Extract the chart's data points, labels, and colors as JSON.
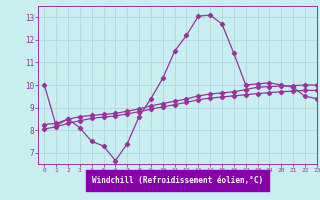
{
  "xlabel": "Windchill (Refroidissement éolien,°C)",
  "background_color": "#c8eef0",
  "grid_color": "#b0d8dc",
  "line_color": "#993399",
  "xlabel_bg": "#8800aa",
  "xlim": [
    -0.5,
    23
  ],
  "ylim": [
    6.5,
    13.5
  ],
  "x_ticks": [
    0,
    1,
    2,
    3,
    4,
    5,
    6,
    7,
    8,
    9,
    10,
    11,
    12,
    13,
    14,
    15,
    16,
    17,
    18,
    19,
    20,
    21,
    22,
    23
  ],
  "y_ticks": [
    7,
    8,
    9,
    10,
    11,
    12,
    13
  ],
  "series1_x": [
    0,
    1,
    2,
    3,
    4,
    5,
    6,
    7,
    8,
    9,
    10,
    11,
    12,
    13,
    14,
    15,
    16,
    17,
    18,
    19,
    20,
    21,
    22,
    23
  ],
  "series1_y": [
    10.0,
    8.2,
    8.5,
    8.1,
    7.5,
    7.3,
    6.65,
    7.4,
    8.6,
    9.4,
    10.3,
    11.5,
    12.2,
    13.05,
    13.1,
    12.7,
    11.4,
    10.0,
    10.05,
    10.1,
    10.0,
    9.9,
    9.5,
    9.4
  ],
  "series2_x": [
    0,
    1,
    2,
    3,
    4,
    5,
    6,
    7,
    8,
    9,
    10,
    11,
    12,
    13,
    14,
    15,
    16,
    17,
    18,
    19,
    20,
    21,
    22,
    23
  ],
  "series2_y": [
    8.05,
    8.15,
    8.3,
    8.42,
    8.52,
    8.58,
    8.63,
    8.72,
    8.82,
    8.93,
    9.03,
    9.13,
    9.23,
    9.35,
    9.42,
    9.47,
    9.52,
    9.57,
    9.62,
    9.66,
    9.7,
    9.73,
    9.76,
    9.76
  ],
  "series3_x": [
    0,
    1,
    2,
    3,
    4,
    5,
    6,
    7,
    8,
    9,
    10,
    11,
    12,
    13,
    14,
    15,
    16,
    17,
    18,
    19,
    20,
    21,
    22,
    23
  ],
  "series3_y": [
    8.25,
    8.3,
    8.48,
    8.6,
    8.65,
    8.7,
    8.74,
    8.84,
    8.94,
    9.08,
    9.18,
    9.28,
    9.38,
    9.52,
    9.6,
    9.65,
    9.7,
    9.8,
    9.9,
    9.93,
    9.95,
    9.97,
    10.0,
    10.0
  ]
}
